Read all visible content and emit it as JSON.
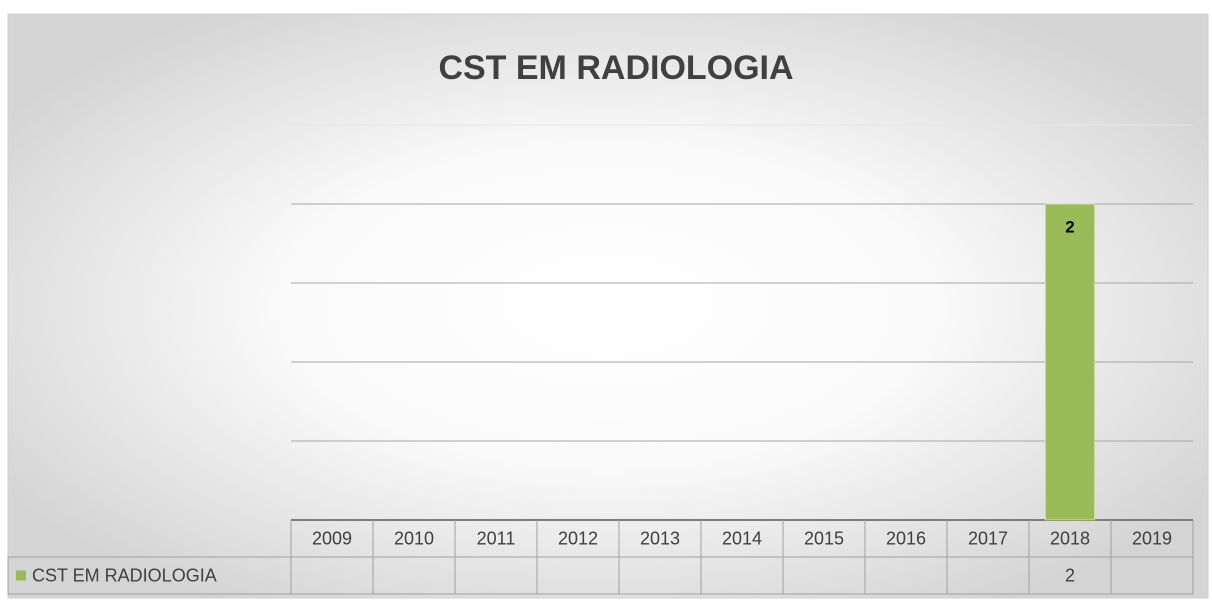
{
  "chart_data": {
    "type": "bar",
    "title": "CST EM RADIOLOGIA",
    "categories": [
      "2009",
      "2010",
      "2011",
      "2012",
      "2013",
      "2014",
      "2015",
      "2016",
      "2017",
      "2018",
      "2019"
    ],
    "series": [
      {
        "name": "CST EM RADIOLOGIA",
        "color": "#9bbb59",
        "values": [
          null,
          null,
          null,
          null,
          null,
          null,
          null,
          null,
          null,
          2,
          null
        ]
      }
    ],
    "ylim": [
      0,
      2.5
    ],
    "yticks": [
      0,
      0.5,
      1,
      1.5,
      2,
      2.5
    ],
    "grid": true
  }
}
